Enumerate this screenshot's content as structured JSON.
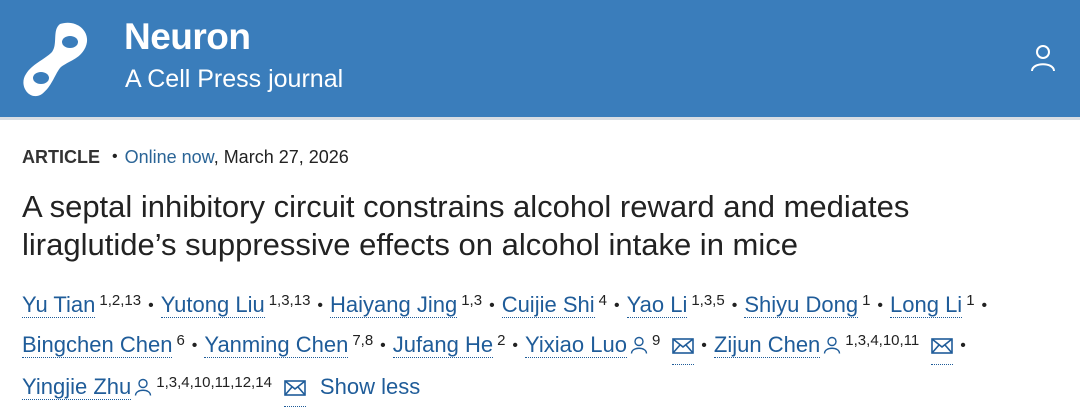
{
  "header": {
    "journal_name": "Neuron",
    "subtitle": "A Cell Press journal",
    "brand_color": "#3a7dbb",
    "account_icon": "person-icon"
  },
  "meta": {
    "type": "ARTICLE",
    "separator": "•",
    "status": "Online now",
    "date": ", March 27, 2026"
  },
  "title": {
    "line1": "A septal inhibitory circuit constrains alcohol reward and mediates",
    "line2": "liraglutide’s suppressive effects on alcohol intake in mice"
  },
  "authors": [
    {
      "name": "Yu Tian",
      "aff": "1,2,13"
    },
    {
      "name": "Yutong Liu",
      "aff": "1,3,13"
    },
    {
      "name": "Haiyang Jing",
      "aff": "1,3"
    },
    {
      "name": "Cuijie Shi",
      "aff": "4"
    },
    {
      "name": "Yao Li",
      "aff": "1,3,5"
    },
    {
      "name": "Shiyu Dong",
      "aff": "1"
    },
    {
      "name": "Long Li",
      "aff": "1"
    },
    {
      "name": "Bingchen Chen",
      "aff": "6"
    },
    {
      "name": "Yanming Chen",
      "aff": "7,8"
    },
    {
      "name": "Jufang He",
      "aff": "2"
    },
    {
      "name": "Yixiao Luo",
      "aff": "9",
      "corresponding": true
    },
    {
      "name": "Zijun Chen",
      "aff": "1,3,4,10,11",
      "corresponding": true
    },
    {
      "name": "Yingjie Zhu",
      "aff": "1,3,4,10,11,12,14",
      "corresponding": true
    }
  ],
  "show_less": "Show less"
}
